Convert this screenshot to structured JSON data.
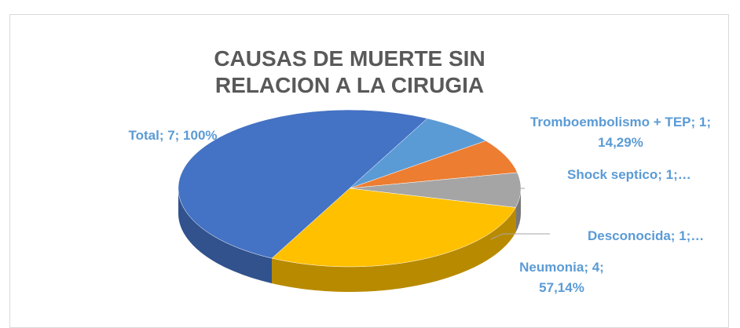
{
  "chart_data": {
    "type": "pie3d",
    "title": "CAUSAS DE MUERTE SIN RELACION A LA CIRUGIA",
    "values": [
      1,
      1,
      1,
      4,
      7
    ],
    "value_labels": [
      "Tromboembolismo + TEP; 1; 14,29%",
      "Shock septico; 1;…",
      "Desconocida; 1;…",
      "Neumonia; 4; 57,14%",
      "Total; 7; 100%"
    ],
    "colors": [
      "#5b9bd5",
      "#ed7d31",
      "#a5a5a5",
      "#ffc000",
      "#4472c4"
    ]
  }
}
